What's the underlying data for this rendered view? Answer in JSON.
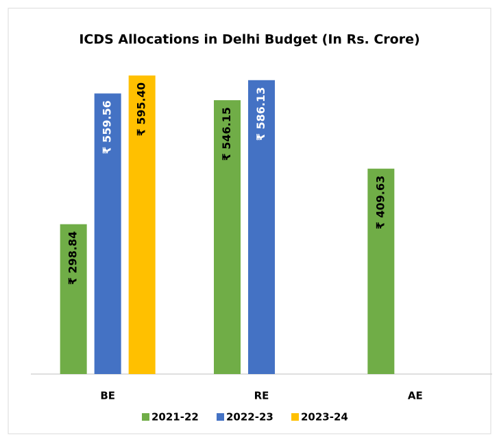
{
  "chart_data": {
    "type": "bar",
    "title": "ICDS Allocations in Delhi Budget (In Rs. Crore)",
    "categories": [
      "BE",
      "RE",
      "AE"
    ],
    "series": [
      {
        "name": "2021-22",
        "color": "#70ad47",
        "values": [
          298.84,
          546.15,
          409.63
        ],
        "value_labels": [
          "₹ 298.84",
          "₹ 546.15",
          "₹ 409.63"
        ]
      },
      {
        "name": "2022-23",
        "color": "#4472c4",
        "values": [
          559.56,
          586.13,
          null
        ],
        "value_labels": [
          "₹ 559.56",
          "₹ 586.13",
          null
        ]
      },
      {
        "name": "2023-24",
        "color": "#ffc000",
        "values": [
          595.4,
          null,
          null
        ],
        "value_labels": [
          "₹ 595.40",
          null,
          null
        ]
      }
    ],
    "legend": "bottom"
  }
}
